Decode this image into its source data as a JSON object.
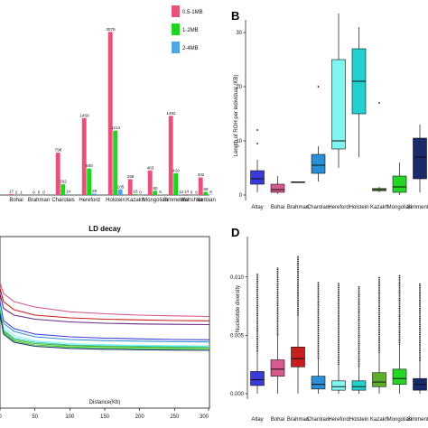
{
  "panels": {
    "B": "B",
    "D": "D"
  },
  "chart_data": [
    {
      "panel": "",
      "type": "bar",
      "categories": [
        "Bohai",
        "Brahman",
        "Charolais",
        "Hereford",
        "Holstein",
        "Kazakh",
        "Mongolian",
        "Simmental",
        "Wenshan",
        "Yanbian"
      ],
      "category_labels": [
        "Bohai",
        "Brahman",
        "Charolais",
        "Hereford",
        "Holstein",
        "Kazakh",
        "Mongolian",
        "Simmental",
        "Wenshan",
        "Yanbian"
      ],
      "series": [
        {
          "name": "0.5-1MB",
          "color": "#e8527a",
          "values": [
            17,
            0,
            798,
            1450,
            3076,
            298,
            463,
            1492,
            14,
            332
          ]
        },
        {
          "name": "1-2MB",
          "color": "#1ed61e",
          "values": [
            2,
            0,
            202,
            500,
            1213,
            16,
            80,
            410,
            0,
            59
          ]
        },
        {
          "name": "2-4MB",
          "color": "#4da6e8",
          "values": [
            1,
            0,
            14,
            28,
            105,
            0,
            5,
            12,
            0,
            8
          ]
        }
      ],
      "bar_labels": [
        [
          "17",
          "2",
          "1"
        ],
        [
          "0",
          "0",
          "0"
        ],
        [
          "798",
          "202",
          "14"
        ],
        [
          "1450",
          "500",
          "28"
        ],
        [
          "3076",
          "1213",
          "105"
        ],
        [
          "298",
          "16",
          "0"
        ],
        [
          "463",
          "80",
          "5"
        ],
        [
          "1492",
          "410",
          "12"
        ],
        [
          "14",
          "0",
          "0"
        ],
        [
          "332",
          "59",
          "8"
        ]
      ],
      "ylim": [
        0,
        3200
      ],
      "legend": "top-right"
    },
    {
      "panel": "B",
      "type": "box",
      "ylabel": "Length of ROH per individual (KB)",
      "ylim": [
        0,
        33
      ],
      "yticks": [
        0,
        10,
        20,
        30
      ],
      "categories": [
        "Altay",
        "Bohai",
        "Brahman",
        "Charolais",
        "Hereford",
        "Holstein",
        "Kazakh",
        "Mongolian",
        "Simmental"
      ],
      "boxes": [
        {
          "name": "Altay",
          "color": "#3a3ad6",
          "whisker_low": 0.5,
          "q1": 2.0,
          "median": 3.0,
          "q3": 4.5,
          "whisker_high": 6.5,
          "outliers": [
            9.5,
            12
          ]
        },
        {
          "name": "Bohai",
          "color": "#d55a8e",
          "whisker_low": 0.2,
          "q1": 0.5,
          "median": 1.0,
          "q3": 2.0,
          "whisker_high": 3.5,
          "outliers": []
        },
        {
          "name": "Brahman",
          "color": "#c81e1e",
          "whisker_low": 2.2,
          "q1": 2.3,
          "median": 2.35,
          "q3": 2.45,
          "whisker_high": 2.5,
          "outliers": []
        },
        {
          "name": "Charolais",
          "color": "#2a8fd6",
          "whisker_low": 2.5,
          "q1": 4.0,
          "median": 5.5,
          "q3": 7.5,
          "whisker_high": 9.0,
          "outliers": [
            20
          ]
        },
        {
          "name": "Hereford",
          "color": "#7ef5ef",
          "whisker_low": 5.0,
          "q1": 8.5,
          "median": 10.0,
          "q3": 25.0,
          "whisker_high": 33.5,
          "outliers": []
        },
        {
          "name": "Holstein",
          "color": "#22cfcf",
          "whisker_low": 7.0,
          "q1": 15.0,
          "median": 21.0,
          "q3": 27.0,
          "whisker_high": 31.0,
          "outliers": []
        },
        {
          "name": "Kazakh",
          "color": "#5fae2a",
          "whisker_low": 0.5,
          "q1": 0.8,
          "median": 1.0,
          "q3": 1.2,
          "whisker_high": 1.5,
          "outliers": [
            17
          ]
        },
        {
          "name": "Mongolian",
          "color": "#25d625",
          "whisker_low": 0.0,
          "q1": 0.5,
          "median": 1.5,
          "q3": 3.5,
          "whisker_high": 6.0,
          "outliers": []
        },
        {
          "name": "Simmental",
          "color": "#1a2a6a",
          "whisker_low": 0.5,
          "q1": 3.0,
          "median": 7.0,
          "q3": 10.5,
          "whisker_high": 13.0,
          "outliers": []
        }
      ]
    },
    {
      "panel": "",
      "type": "line",
      "title": "LD decay",
      "xlabel": "Distance(Kb)",
      "xlim": [
        0,
        300
      ],
      "xticks": [
        0,
        50,
        100,
        150,
        200,
        250,
        300
      ],
      "ylim": [
        0,
        1
      ],
      "series": [
        {
          "color": "#c81e1e",
          "x": [
            0,
            5,
            20,
            50,
            100,
            150,
            200,
            250,
            300
          ],
          "y": [
            0.62,
            0.52,
            0.46,
            0.42,
            0.4,
            0.39,
            0.385,
            0.38,
            0.378
          ]
        },
        {
          "color": "#d55a8e",
          "x": [
            0,
            5,
            20,
            50,
            100,
            150,
            200,
            250,
            300
          ],
          "y": [
            0.66,
            0.58,
            0.52,
            0.48,
            0.445,
            0.43,
            0.42,
            0.415,
            0.41
          ]
        },
        {
          "color": "#6a2a8a",
          "x": [
            0,
            5,
            20,
            50,
            100,
            150,
            200,
            250,
            300
          ],
          "y": [
            0.58,
            0.47,
            0.42,
            0.39,
            0.37,
            0.36,
            0.355,
            0.352,
            0.35
          ]
        },
        {
          "color": "#3a3ad6",
          "x": [
            0,
            5,
            20,
            50,
            100,
            150,
            200,
            250,
            300
          ],
          "y": [
            0.52,
            0.38,
            0.32,
            0.28,
            0.26,
            0.25,
            0.245,
            0.24,
            0.238
          ]
        },
        {
          "color": "#2a8fd6",
          "x": [
            0,
            5,
            20,
            50,
            100,
            150,
            200,
            250,
            300
          ],
          "y": [
            0.5,
            0.36,
            0.3,
            0.26,
            0.24,
            0.232,
            0.228,
            0.225,
            0.222
          ]
        },
        {
          "color": "#7ef5ef",
          "x": [
            0,
            5,
            20,
            50,
            100,
            150,
            200,
            250,
            300
          ],
          "y": [
            0.48,
            0.33,
            0.27,
            0.23,
            0.21,
            0.202,
            0.198,
            0.195,
            0.193
          ]
        },
        {
          "color": "#22cfcf",
          "x": [
            0,
            5,
            20,
            50,
            100,
            150,
            200,
            250,
            300
          ],
          "y": [
            0.46,
            0.31,
            0.25,
            0.22,
            0.2,
            0.193,
            0.19,
            0.187,
            0.185
          ]
        },
        {
          "color": "#5fae2a",
          "x": [
            0,
            5,
            20,
            50,
            100,
            150,
            200,
            250,
            300
          ],
          "y": [
            0.45,
            0.3,
            0.24,
            0.21,
            0.195,
            0.188,
            0.184,
            0.181,
            0.18
          ]
        },
        {
          "color": "#25d625",
          "x": [
            0,
            5,
            20,
            50,
            100,
            150,
            200,
            250,
            300
          ],
          "y": [
            0.44,
            0.29,
            0.23,
            0.2,
            0.185,
            0.178,
            0.174,
            0.172,
            0.17
          ]
        },
        {
          "color": "#1a2a6a",
          "x": [
            0,
            5,
            20,
            50,
            100,
            150,
            200,
            250,
            300
          ],
          "y": [
            0.43,
            0.28,
            0.22,
            0.19,
            0.175,
            0.168,
            0.165,
            0.162,
            0.16
          ]
        }
      ]
    },
    {
      "panel": "D",
      "type": "box",
      "ylabel": "Nucleotide diversity",
      "ylim": [
        0,
        0.013
      ],
      "yticks": [
        0.0,
        0.005,
        0.01
      ],
      "ytick_labels": [
        "0.000",
        "0.005",
        "0.010"
      ],
      "categories": [
        "Altay",
        "Bohai",
        "Brahman",
        "Charolais",
        "Hereford",
        "Holstein",
        "Kazakh",
        "Mongolian",
        "Simmental"
      ],
      "boxes": [
        {
          "name": "Altay",
          "color": "#3a3ad6",
          "whisker_low": 0.0,
          "q1": 0.0007,
          "median": 0.0012,
          "q3": 0.0019,
          "whisker_high": 0.0036,
          "outlier_max": 0.0103
        },
        {
          "name": "Bohai",
          "color": "#d55a8e",
          "whisker_low": 0.0,
          "q1": 0.0015,
          "median": 0.0021,
          "q3": 0.0029,
          "whisker_high": 0.005,
          "outlier_max": 0.0108
        },
        {
          "name": "Brahman",
          "color": "#c81e1e",
          "whisker_low": 0.0,
          "q1": 0.0023,
          "median": 0.003,
          "q3": 0.004,
          "whisker_high": 0.0067,
          "outlier_max": 0.0118
        },
        {
          "name": "Charolais",
          "color": "#2a8fd6",
          "whisker_low": 0.0,
          "q1": 0.0004,
          "median": 0.0008,
          "q3": 0.0015,
          "whisker_high": 0.003,
          "outlier_max": 0.0096
        },
        {
          "name": "Hereford",
          "color": "#7ef5ef",
          "whisker_low": 0.0,
          "q1": 0.0003,
          "median": 0.0006,
          "q3": 0.0011,
          "whisker_high": 0.0025,
          "outlier_max": 0.0095
        },
        {
          "name": "Holstein",
          "color": "#22cfcf",
          "whisker_low": 0.0,
          "q1": 0.0003,
          "median": 0.0006,
          "q3": 0.0011,
          "whisker_high": 0.0023,
          "outlier_max": 0.0092
        },
        {
          "name": "Kazakh",
          "color": "#5fae2a",
          "whisker_low": 0.0,
          "q1": 0.0006,
          "median": 0.001,
          "q3": 0.0018,
          "whisker_high": 0.0035,
          "outlier_max": 0.01
        },
        {
          "name": "Mongolian",
          "color": "#25d625",
          "whisker_low": 0.0,
          "q1": 0.0008,
          "median": 0.0013,
          "q3": 0.0021,
          "whisker_high": 0.0042,
          "outlier_max": 0.0102
        },
        {
          "name": "Simmental",
          "color": "#1a2a6a",
          "whisker_low": 0.0,
          "q1": 0.0003,
          "median": 0.0008,
          "q3": 0.0013,
          "whisker_high": 0.0028,
          "outlier_max": 0.0095
        }
      ]
    }
  ]
}
